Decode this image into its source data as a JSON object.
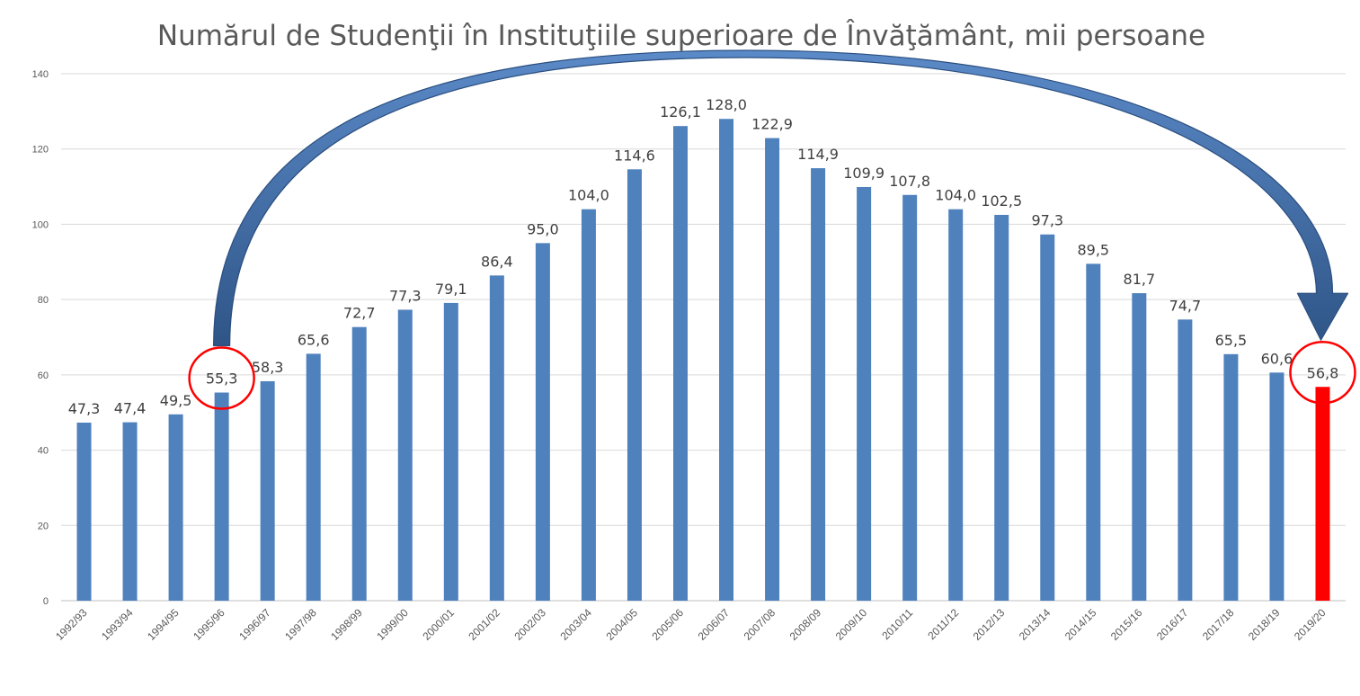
{
  "chart_data": {
    "type": "bar",
    "title": "Numărul de Studenţii în Instituţiile superioare de Învăţământ, mii persoane",
    "xlabel": "",
    "ylabel": "",
    "ylim": [
      0,
      140
    ],
    "yticks": [
      0,
      20,
      40,
      60,
      80,
      100,
      120,
      140
    ],
    "grid": true,
    "legend": "none",
    "categories": [
      "1992/93",
      "1993/94",
      "1994/95",
      "1995/96",
      "1996/97",
      "1997/98",
      "1998/99",
      "1999/00",
      "2000/01",
      "2001/02",
      "2002/03",
      "2003/04",
      "2004/05",
      "2005/06",
      "2006/07",
      "2007/08",
      "2008/09",
      "2009/10",
      "2010/11",
      "2011/12",
      "2012/13",
      "2013/14",
      "2014/15",
      "2015/16",
      "2016/17",
      "2017/18",
      "2018/19",
      "2019/20"
    ],
    "values": [
      47.3,
      47.4,
      49.5,
      55.3,
      58.3,
      65.6,
      72.7,
      77.3,
      79.1,
      86.4,
      95.0,
      104.0,
      114.6,
      126.1,
      128.0,
      122.9,
      114.9,
      109.9,
      107.8,
      104.0,
      102.5,
      97.3,
      89.5,
      81.7,
      74.7,
      65.5,
      60.6,
      56.8
    ],
    "value_labels": [
      "47,3",
      "47,4",
      "49,5",
      "55,3",
      "58,3",
      "65,6",
      "72,7",
      "77,3",
      "79,1",
      "86,4",
      "95,0",
      "104,0",
      "114,6",
      "126,1",
      "128,0",
      "122,9",
      "114,9",
      "109,9",
      "107,8",
      "104,0",
      "102,5",
      "97,3",
      "89,5",
      "81,7",
      "74,7",
      "65,5",
      "60,6",
      "56,8"
    ],
    "bar_color": "#4f81bd",
    "highlight_color": "#ff0000",
    "highlight_categories": [
      "2019/20"
    ],
    "circled_categories": [
      "1995/96",
      "2019/20"
    ],
    "arrow": {
      "from": "1995/96",
      "to": "2019/20",
      "color": "#3a6398"
    }
  }
}
